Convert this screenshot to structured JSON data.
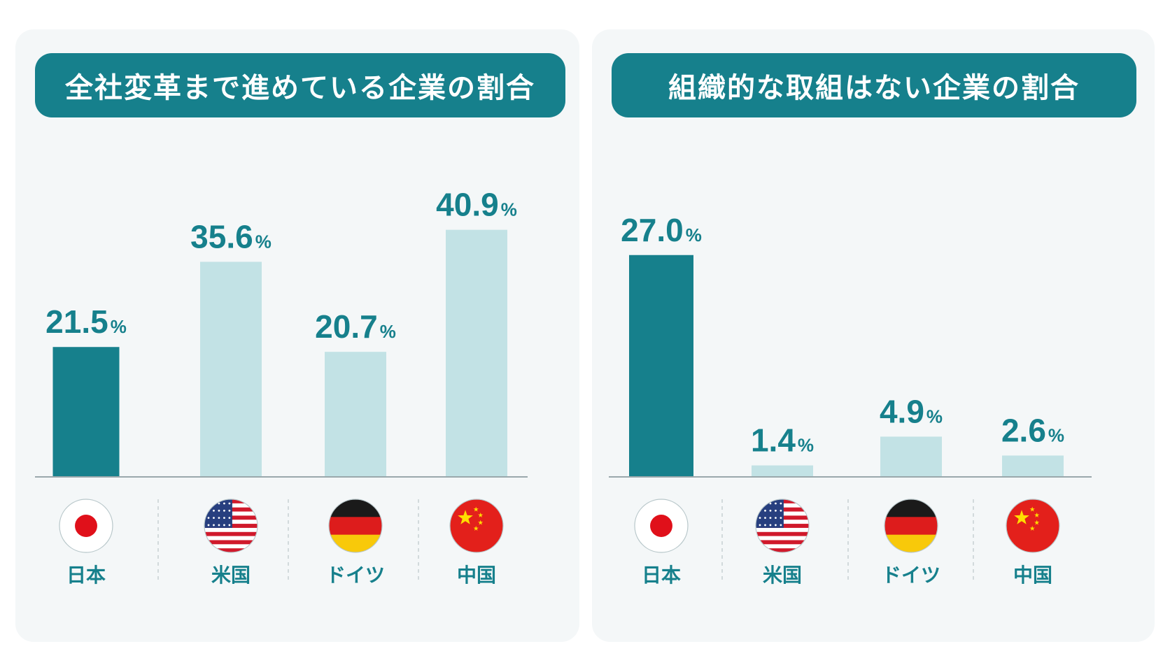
{
  "colors": {
    "panel_bg": "#f4f7f8",
    "header_bg": "#16808c",
    "highlight": "#16808c",
    "muted": "#c2e2e5",
    "label_text": "#16808c",
    "baseline": "#9aa8ac"
  },
  "chart_data": [
    {
      "type": "bar",
      "title": "全社変革まで進めている企業の割合",
      "categories": [
        "日本",
        "米国",
        "ドイツ",
        "中国"
      ],
      "values": [
        21.5,
        35.6,
        20.7,
        40.9
      ],
      "value_labels": [
        "21.5",
        "35.6",
        "20.7",
        "40.9"
      ],
      "unit": "%",
      "highlight_index": 0,
      "ylim": [
        0,
        50
      ],
      "flags": [
        "japan-flag",
        "usa-flag",
        "germany-flag",
        "china-flag"
      ],
      "grid": false
    },
    {
      "type": "bar",
      "title": "組織的な取組はない企業の割合",
      "categories": [
        "日本",
        "米国",
        "ドイツ",
        "中国"
      ],
      "values": [
        27.0,
        1.4,
        4.9,
        2.6
      ],
      "value_labels": [
        "27.0",
        "1.4",
        "4.9",
        "2.6"
      ],
      "unit": "%",
      "highlight_index": 0,
      "ylim": [
        0,
        42
      ],
      "flags": [
        "japan-flag",
        "usa-flag",
        "germany-flag",
        "china-flag"
      ],
      "grid": false
    }
  ]
}
